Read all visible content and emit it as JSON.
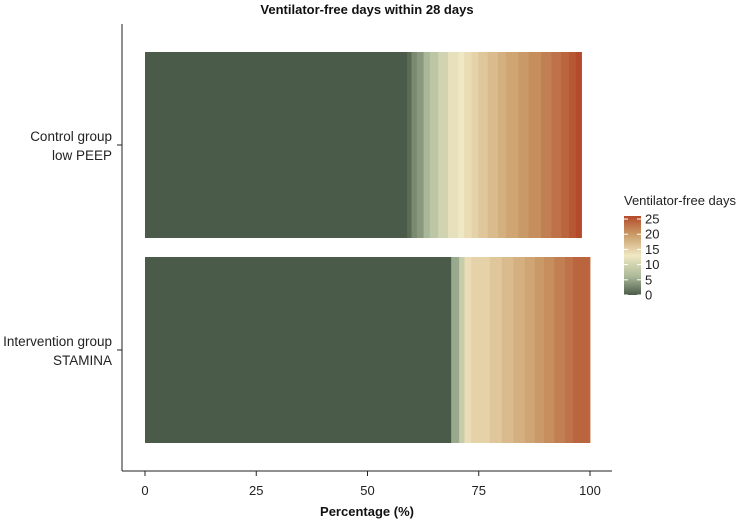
{
  "chart_data": {
    "type": "bar",
    "orientation": "horizontal",
    "stacked": true,
    "title": "Ventilator-free days within 28 days",
    "xlabel": "Percentage (%)",
    "ylabel": "",
    "xlim": [
      0,
      100
    ],
    "xticks": [
      "0",
      "25",
      "50",
      "75",
      "100"
    ],
    "categories": [
      {
        "line1": "Control group",
        "line2": "low PEEP"
      },
      {
        "line1": "Intervention group",
        "line2": "STAMINA"
      }
    ],
    "series": [
      {
        "category": "Control group low PEEP",
        "segments": [
          {
            "vfd": 0,
            "pct": 58.9
          },
          {
            "vfd": 1,
            "pct": 1.0
          },
          {
            "vfd": 3,
            "pct": 1.2
          },
          {
            "vfd": 4,
            "pct": 1.5
          },
          {
            "vfd": 6,
            "pct": 1.4
          },
          {
            "vfd": 8,
            "pct": 1.9
          },
          {
            "vfd": 10,
            "pct": 2.2
          },
          {
            "vfd": 12,
            "pct": 2.3
          },
          {
            "vfd": 13,
            "pct": 1.3
          },
          {
            "vfd": 14,
            "pct": 1.7
          },
          {
            "vfd": 15,
            "pct": 1.5
          },
          {
            "vfd": 16,
            "pct": 2.1
          },
          {
            "vfd": 17,
            "pct": 2.3
          },
          {
            "vfd": 18,
            "pct": 1.8
          },
          {
            "vfd": 19,
            "pct": 2.8
          },
          {
            "vfd": 20,
            "pct": 2.3
          },
          {
            "vfd": 21,
            "pct": 2.8
          },
          {
            "vfd": 22,
            "pct": 2.3
          },
          {
            "vfd": 23,
            "pct": 2.2
          },
          {
            "vfd": 24,
            "pct": 1.8
          },
          {
            "vfd": 25,
            "pct": 1.5
          },
          {
            "vfd": 26,
            "pct": 1.3
          }
        ]
      },
      {
        "category": "Intervention group STAMINA",
        "segments": [
          {
            "vfd": 0,
            "pct": 68.8
          },
          {
            "vfd": 5,
            "pct": 1.8
          },
          {
            "vfd": 9,
            "pct": 1.2
          },
          {
            "vfd": 14,
            "pct": 1.5
          },
          {
            "vfd": 15,
            "pct": 4.2
          },
          {
            "vfd": 16,
            "pct": 2.7
          },
          {
            "vfd": 17,
            "pct": 2.6
          },
          {
            "vfd": 18,
            "pct": 2.5
          },
          {
            "vfd": 19,
            "pct": 2.3
          },
          {
            "vfd": 20,
            "pct": 2.1
          },
          {
            "vfd": 21,
            "pct": 2.3
          },
          {
            "vfd": 22,
            "pct": 2.4
          },
          {
            "vfd": 23,
            "pct": 1.8
          },
          {
            "vfd": 24,
            "pct": 3.8
          }
        ]
      }
    ],
    "legend": {
      "title": "Ventilator-free days",
      "position": "right",
      "ticks": [
        "25",
        "20",
        "15",
        "10",
        "5",
        "0"
      ],
      "range": [
        0,
        26
      ]
    },
    "colors": {
      "low": "#4b5b49",
      "mid_low": "#a9b898",
      "mid": "#f0e8c2",
      "mid_high": "#c99a67",
      "high": "#b44a2a"
    },
    "grid": false
  }
}
